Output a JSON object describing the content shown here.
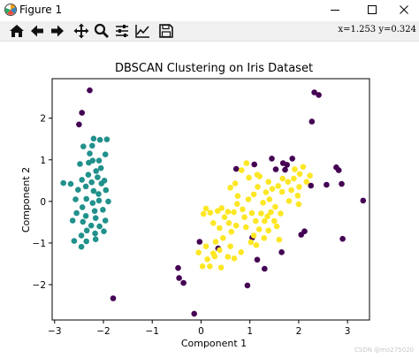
{
  "window": {
    "title": "Figure 1",
    "minimize_label": "–",
    "maximize_label": "□",
    "close_label": "✕"
  },
  "toolbar": {
    "buttons": [
      {
        "name": "home-button",
        "icon": "home-icon"
      },
      {
        "name": "back-button",
        "icon": "arrow-left-icon"
      },
      {
        "name": "forward-button",
        "icon": "arrow-right-icon"
      },
      {
        "name": "pan-button",
        "icon": "move-icon"
      },
      {
        "name": "zoom-button",
        "icon": "magnifier-icon"
      },
      {
        "name": "subplots-button",
        "icon": "sliders-icon"
      },
      {
        "name": "edit-axes-button",
        "icon": "line-chart-icon"
      },
      {
        "name": "save-button",
        "icon": "floppy-disk-icon"
      }
    ],
    "coords": "x=1.253  y=0.324"
  },
  "watermark": "CSDN @mo275020",
  "chart_data": {
    "type": "scatter",
    "title": "DBSCAN Clustering on Iris Dataset",
    "xlabel": "Component 1",
    "ylabel": "Component 2",
    "xlim": [
      -3.05,
      3.45
    ],
    "ylim": [
      -2.85,
      2.95
    ],
    "xticks": [
      -3,
      -2,
      -1,
      0,
      1,
      2,
      3
    ],
    "yticks": [
      -2,
      -1,
      0,
      1,
      2
    ],
    "xtick_labels": [
      "−3",
      "−2",
      "−1",
      "0",
      "1",
      "2",
      "3"
    ],
    "ytick_labels": [
      "−2",
      "−1",
      "0",
      "1",
      "2"
    ],
    "grid": false,
    "colors": {
      "noise": "#440154",
      "cluster_0": "#21918c",
      "cluster_1": "#fde725"
    },
    "series": [
      {
        "color": "#440154",
        "points": [
          [
            -2.28,
            2.67
          ],
          [
            -2.44,
            2.13
          ],
          [
            -2.5,
            1.85
          ],
          [
            -1.8,
            -2.33
          ],
          [
            2.32,
            2.62
          ],
          [
            2.41,
            2.56
          ],
          [
            2.27,
            1.92
          ],
          [
            1.45,
            1.03
          ],
          [
            1.87,
            1.03
          ],
          [
            1.76,
            0.88
          ],
          [
            1.72,
            0.76
          ],
          [
            1.68,
            0.92
          ],
          [
            1.53,
            0.77
          ],
          [
            0.72,
            0.78
          ],
          [
            1.09,
            0.89
          ],
          [
            2.77,
            0.82
          ],
          [
            2.82,
            0.75
          ],
          [
            2.57,
            0.4
          ],
          [
            2.88,
            0.42
          ],
          [
            3.32,
            0.02
          ],
          [
            2.25,
            0.38
          ],
          [
            -0.03,
            -0.97
          ],
          [
            0.35,
            -1.13
          ],
          [
            1.05,
            -0.87
          ],
          [
            1.15,
            -1.4
          ],
          [
            1.3,
            -1.62
          ],
          [
            0.95,
            -2.02
          ],
          [
            1.65,
            -1.22
          ],
          [
            2.05,
            -0.8
          ],
          [
            2.12,
            -0.72
          ],
          [
            2.9,
            -0.9
          ],
          [
            -0.47,
            -1.6
          ],
          [
            -0.45,
            -1.84
          ],
          [
            -0.36,
            -1.96
          ],
          [
            -0.14,
            -2.7
          ]
        ]
      },
      {
        "color": "#21918c",
        "points": [
          [
            -2.07,
            1.48
          ],
          [
            -2.2,
            1.51
          ],
          [
            -1.93,
            1.49
          ],
          [
            -2.23,
            1.34
          ],
          [
            -2.41,
            1.32
          ],
          [
            -2.28,
            1.15
          ],
          [
            -1.96,
            1.13
          ],
          [
            -2.22,
            0.98
          ],
          [
            -2.09,
            0.98
          ],
          [
            -2.3,
            0.93
          ],
          [
            -2.48,
            0.9
          ],
          [
            -2.05,
            0.8
          ],
          [
            -2.15,
            0.73
          ],
          [
            -2.31,
            0.64
          ],
          [
            -2.44,
            0.52
          ],
          [
            -2.12,
            0.58
          ],
          [
            -1.98,
            0.5
          ],
          [
            -2.04,
            0.43
          ],
          [
            -2.24,
            0.46
          ],
          [
            -2.36,
            0.36
          ],
          [
            -2.67,
            0.42
          ],
          [
            -2.52,
            0.28
          ],
          [
            -2.2,
            0.25
          ],
          [
            -1.95,
            0.27
          ],
          [
            -2.1,
            0.18
          ],
          [
            -2.82,
            0.44
          ],
          [
            -2.57,
            0.05
          ],
          [
            -2.35,
            0.06
          ],
          [
            -2.22,
            -0.04
          ],
          [
            -2.09,
            0.02
          ],
          [
            -1.9,
            0.0
          ],
          [
            -2.43,
            -0.14
          ],
          [
            -2.18,
            -0.23
          ],
          [
            -2.01,
            -0.2
          ],
          [
            -2.55,
            -0.28
          ],
          [
            -2.36,
            -0.35
          ],
          [
            -2.16,
            -0.4
          ],
          [
            -1.96,
            -0.46
          ],
          [
            -2.42,
            -0.49
          ],
          [
            -2.63,
            -0.46
          ],
          [
            -2.25,
            -0.58
          ],
          [
            -2.08,
            -0.6
          ],
          [
            -2.34,
            -0.7
          ],
          [
            -2.17,
            -0.77
          ],
          [
            -1.99,
            -0.72
          ],
          [
            -2.45,
            -0.82
          ],
          [
            -2.6,
            -0.95
          ],
          [
            -2.35,
            -0.96
          ],
          [
            -2.16,
            -0.91
          ],
          [
            -2.45,
            -1.09
          ]
        ]
      },
      {
        "color": "#fde725",
        "points": [
          [
            0.34,
            -0.23
          ],
          [
            0.19,
            -0.27
          ],
          [
            0.1,
            -0.17
          ],
          [
            0.05,
            -0.3
          ],
          [
            0.42,
            -0.16
          ],
          [
            0.55,
            -0.25
          ],
          [
            0.67,
            -0.26
          ],
          [
            0.57,
            -0.52
          ],
          [
            0.38,
            -0.64
          ],
          [
            0.62,
            -0.73
          ],
          [
            0.85,
            -0.19
          ],
          [
            0.74,
            -0.06
          ],
          [
            0.89,
            -0.38
          ],
          [
            1.04,
            -0.28
          ],
          [
            1.12,
            -0.47
          ],
          [
            1.19,
            -0.67
          ],
          [
            1.3,
            -0.47
          ],
          [
            1.36,
            -0.36
          ],
          [
            1.23,
            -0.29
          ],
          [
            1.08,
            -0.82
          ],
          [
            1.29,
            -0.88
          ],
          [
            1.38,
            -0.7
          ],
          [
            1.5,
            -0.47
          ],
          [
            1.55,
            -0.6
          ],
          [
            1.43,
            -0.26
          ],
          [
            1.52,
            -0.13
          ],
          [
            1.63,
            -0.29
          ],
          [
            1.27,
            -0.03
          ],
          [
            1.4,
            0.05
          ],
          [
            0.97,
            0.05
          ],
          [
            0.75,
            0.13
          ],
          [
            1.33,
            0.22
          ],
          [
            1.46,
            0.3
          ],
          [
            1.66,
            0.23
          ],
          [
            1.85,
            0.27
          ],
          [
            1.58,
            0.37
          ],
          [
            1.78,
            0.47
          ],
          [
            1.67,
            0.55
          ],
          [
            1.9,
            0.55
          ],
          [
            2.01,
            0.35
          ],
          [
            2.16,
            0.47
          ],
          [
            2.23,
            0.62
          ],
          [
            1.92,
            0.77
          ],
          [
            2.09,
            0.83
          ],
          [
            2.02,
            0.66
          ],
          [
            1.15,
            0.64
          ],
          [
            0.98,
            0.57
          ],
          [
            1.16,
            0.35
          ],
          [
            0.83,
            0.75
          ],
          [
            0.93,
            0.92
          ],
          [
            1.2,
            0.6
          ],
          [
            1.38,
            0.47
          ],
          [
            0.7,
            0.43
          ],
          [
            0.6,
            0.33
          ],
          [
            0.25,
            -0.52
          ],
          [
            0.45,
            -0.88
          ],
          [
            0.3,
            -0.97
          ],
          [
            0.28,
            -1.32
          ],
          [
            0.13,
            -1.39
          ],
          [
            0.55,
            -1.33
          ],
          [
            0.03,
            -1.56
          ],
          [
            0.18,
            -1.56
          ],
          [
            0.41,
            -1.59
          ],
          [
            0.68,
            -1.37
          ],
          [
            0.82,
            -1.22
          ],
          [
            1.02,
            -0.98
          ],
          [
            0.72,
            -0.58
          ],
          [
            0.38,
            -1.17
          ],
          [
            0.1,
            -1.08
          ],
          [
            -0.05,
            -1.23
          ],
          [
            0.92,
            -0.62
          ],
          [
            1.6,
            -0.92
          ],
          [
            1.98,
            0.14
          ],
          [
            1.8,
            0.01
          ],
          [
            2.0,
            -0.07
          ],
          [
            1.13,
            -1.05
          ],
          [
            0.25,
            -1.25
          ],
          [
            0.6,
            -1.08
          ],
          [
            1.08,
            0.17
          ],
          [
            0.48,
            -0.38
          ]
        ]
      }
    ]
  }
}
